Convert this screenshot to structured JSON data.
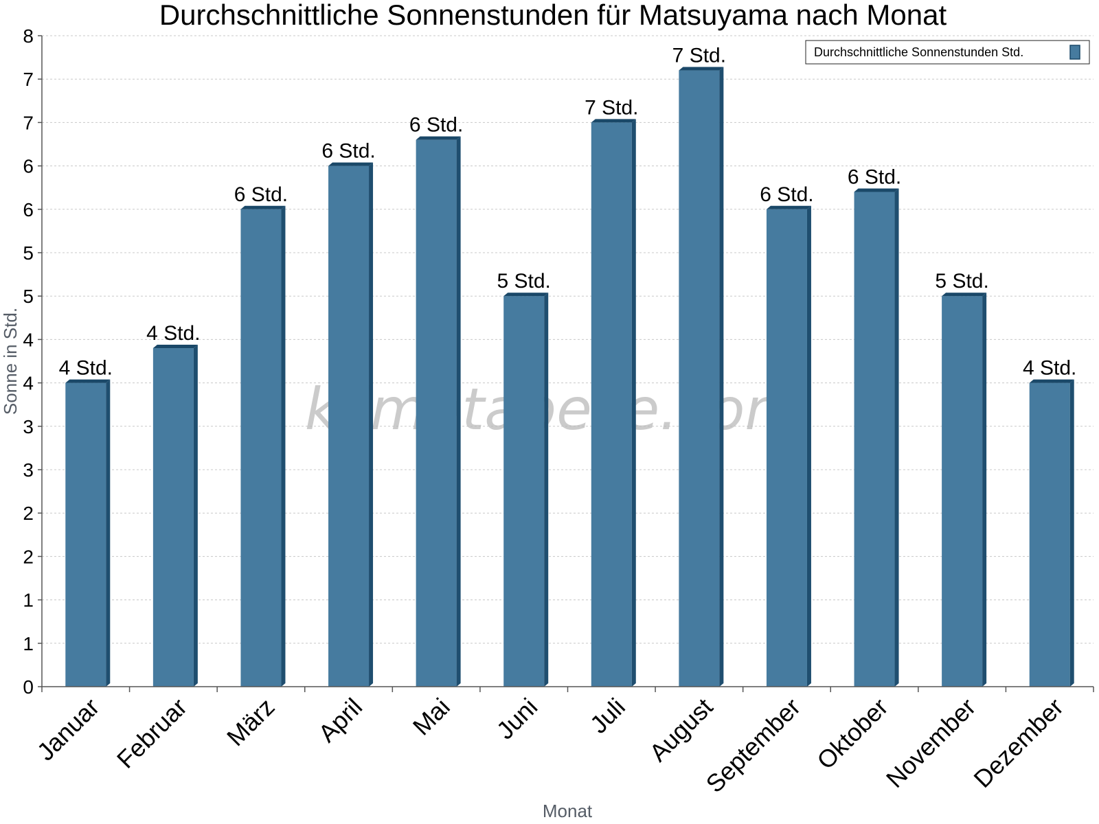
{
  "chart_data": {
    "type": "bar",
    "title": "Durchschnittliche Sonnenstunden für Matsuyama nach Monat",
    "xlabel": "Monat",
    "ylabel": "Sonne in Std.",
    "categories": [
      "Januar",
      "Februar",
      "März",
      "April",
      "Mai",
      "Juni",
      "Juli",
      "August",
      "September",
      "Oktober",
      "November",
      "Dezember"
    ],
    "series": [
      {
        "name": "Durchschnittliche Sonnenstunden Std.",
        "values": [
          3.5,
          3.9,
          5.5,
          6.0,
          6.3,
          4.5,
          6.5,
          7.1,
          5.5,
          5.7,
          4.5,
          3.5
        ],
        "labels": [
          "4 Std.",
          "4 Std.",
          "6 Std.",
          "6 Std.",
          "6 Std.",
          "5 Std.",
          "7 Std.",
          "7 Std.",
          "6 Std.",
          "6 Std.",
          "5 Std.",
          "4 Std."
        ]
      }
    ],
    "ylim": [
      0,
      7.5
    ],
    "y_ticks": [
      0,
      0.5,
      1,
      1.5,
      2,
      2.5,
      3,
      3.5,
      4,
      4.5,
      5,
      5.5,
      6,
      6.5,
      7,
      7.5
    ],
    "y_tick_labels": [
      "0",
      "1",
      "1",
      "2",
      "2",
      "3",
      "3",
      "4",
      "4",
      "5",
      "5",
      "6",
      "6",
      "7",
      "7",
      "8"
    ],
    "grid": true,
    "legend": "top-right",
    "watermark": "klimatabelle.com",
    "colors": {
      "bar": "#467b9f",
      "bar_side": "#1f4e6f",
      "bar_top": "#1a4868",
      "grid": "#c8c8c8",
      "axis": "#555555"
    }
  }
}
